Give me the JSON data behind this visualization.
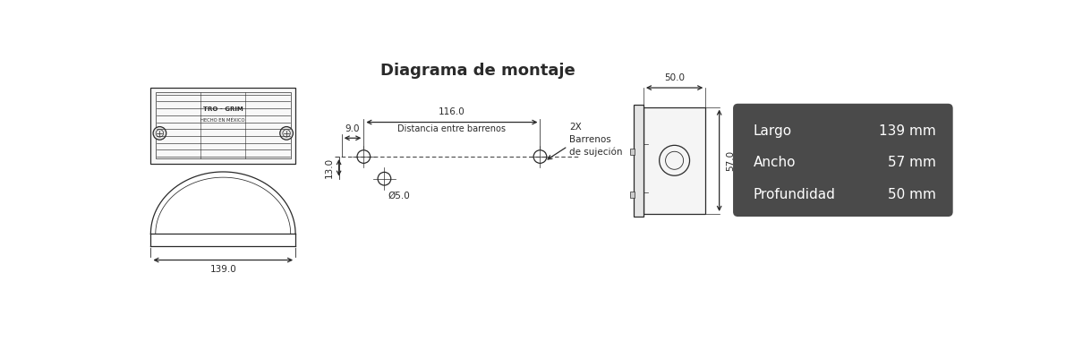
{
  "bg_color": "#ffffff",
  "line_color": "#2a2a2a",
  "title_montaje": "Diagrama de montaje",
  "dim_largo": "139 mm",
  "dim_ancho": "57 mm",
  "dim_profundidad": "50 mm",
  "label_largo": "Largo",
  "label_ancho": "Ancho",
  "label_profundidad": "Profundidad",
  "box_bg": "#4a4a4a",
  "box_text_color": "#ffffff",
  "dim_116": "116.0",
  "dim_9": "9.0",
  "dim_13": "13.0",
  "dim_5": "Ø5.0",
  "dim_50_top": "50.0",
  "dim_57_side": "57.0",
  "text_distancia": "Distancia entre barrenos",
  "text_2x": "2X",
  "text_barrenos": "Barrenos",
  "text_sujecion": "de sujeción",
  "text_139": "139.0",
  "text_trogrim": "TRO - GRIM",
  "text_hecho": "HECHO EN MÉXICO"
}
